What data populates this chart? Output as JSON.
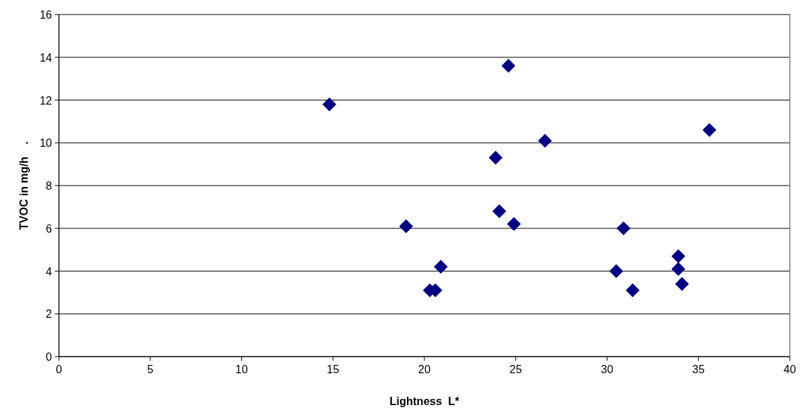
{
  "chart_data": {
    "type": "scatter",
    "xlabel": "Lightness  L*",
    "ylabel": "TVOC in mg/h    .",
    "x": [
      14.8,
      19.0,
      20.3,
      20.6,
      20.9,
      23.9,
      24.1,
      24.6,
      24.9,
      26.6,
      30.5,
      30.9,
      31.4,
      33.9,
      33.9,
      34.1,
      35.6
    ],
    "series": [
      {
        "color": "#000080",
        "values": [
          11.8,
          6.1,
          3.1,
          3.1,
          4.2,
          9.3,
          6.8,
          13.6,
          6.2,
          10.1,
          4.0,
          6.0,
          3.1,
          4.7,
          4.1,
          3.4,
          10.6
        ]
      }
    ],
    "xlim": [
      0,
      40
    ],
    "xticks": [
      0,
      5,
      10,
      15,
      20,
      25,
      30,
      35,
      40
    ],
    "ylim": [
      0,
      16
    ],
    "yticks": [
      0,
      2,
      4,
      6,
      8,
      10,
      12,
      14,
      16
    ],
    "grid": "y",
    "marker": "diamond"
  }
}
